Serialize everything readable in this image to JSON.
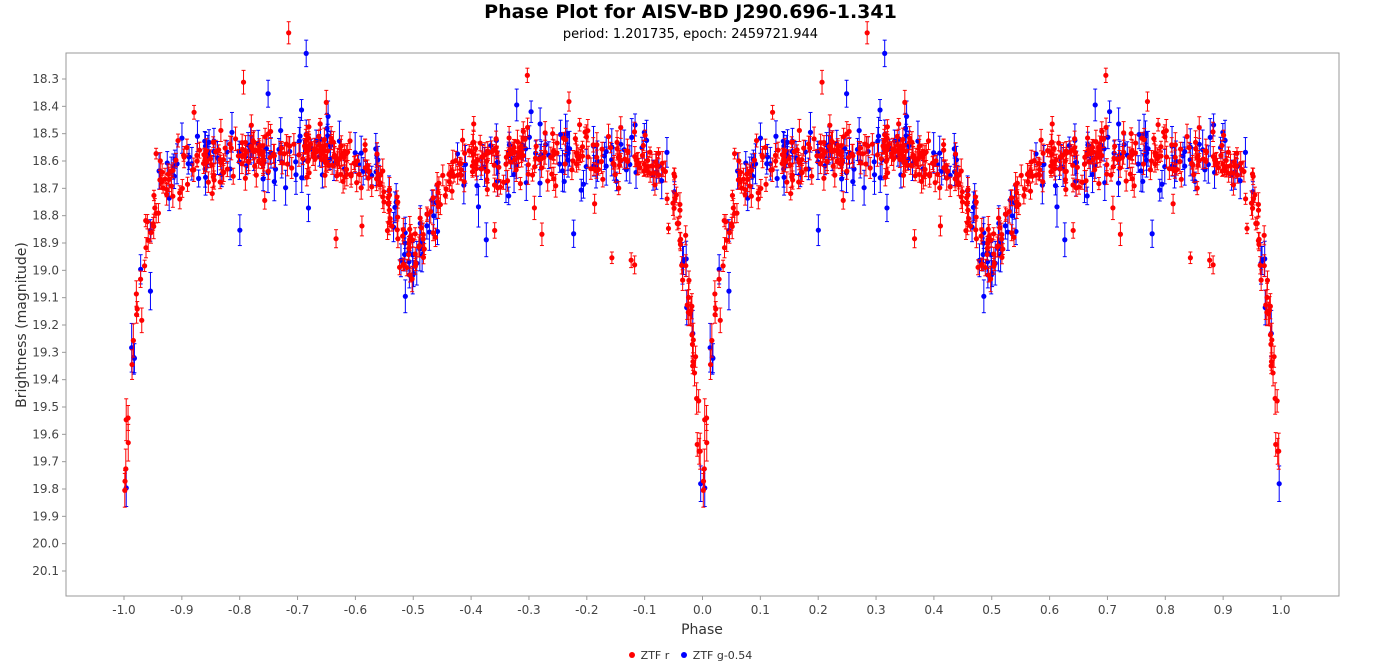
{
  "chart_data": {
    "type": "scatter",
    "title": "Phase Plot for AISV-BD J290.696-1.341",
    "subtitle": "period: 1.201735, epoch: 2459721.944",
    "xlabel": "Phase",
    "ylabel": "Brightness (magnitude)",
    "xlim": [
      -1.1,
      1.1
    ],
    "ylim": [
      18.2,
      20.2
    ],
    "y_inverted": true,
    "xticks": [
      "-1.0",
      "-0.9",
      "-0.8",
      "-0.7",
      "-0.6",
      "-0.5",
      "-0.4",
      "-0.3",
      "-0.2",
      "-0.1",
      "0.0",
      "0.1",
      "0.2",
      "0.3",
      "0.4",
      "0.5",
      "0.6",
      "0.7",
      "0.8",
      "0.9",
      "1.0"
    ],
    "yticks": [
      "18.3",
      "18.4",
      "18.5",
      "18.6",
      "18.7",
      "18.8",
      "18.9",
      "19.0",
      "19.1",
      "19.2",
      "19.3",
      "19.4",
      "19.5",
      "19.6",
      "19.7",
      "19.8",
      "19.9",
      "20.0",
      "20.1"
    ],
    "grid": false,
    "legend_position": "bottom-center",
    "light_curve_model": {
      "phase": [
        0.0,
        0.01,
        0.02,
        0.03,
        0.04,
        0.05,
        0.06,
        0.08,
        0.1,
        0.15,
        0.2,
        0.25,
        0.3,
        0.35,
        0.4,
        0.43,
        0.45,
        0.47,
        0.49,
        0.5,
        0.51,
        0.53,
        0.55,
        0.57,
        0.6,
        0.65,
        0.7,
        0.75,
        0.8,
        0.85,
        0.9,
        0.93,
        0.95,
        0.96,
        0.97,
        0.98,
        0.99,
        1.0
      ],
      "magnitude": [
        19.85,
        19.5,
        19.2,
        19.0,
        18.86,
        18.77,
        18.71,
        18.66,
        18.63,
        18.59,
        18.58,
        18.57,
        18.56,
        18.58,
        18.6,
        18.64,
        18.7,
        18.82,
        18.93,
        18.97,
        18.93,
        18.82,
        18.7,
        18.64,
        18.6,
        18.59,
        18.58,
        18.57,
        18.57,
        18.58,
        18.6,
        18.63,
        18.71,
        18.86,
        19.0,
        19.2,
        19.5,
        19.85
      ]
    },
    "series": [
      {
        "name": "ZTF r",
        "color": "#ff0000",
        "points_per_cycle": 520,
        "scatter": 0.045,
        "error": 0.03,
        "outlier_fraction": 0.05
      },
      {
        "name": "ZTF g-0.54",
        "color": "#0000ff",
        "points_per_cycle": 200,
        "scatter": 0.055,
        "error": 0.05,
        "outlier_fraction": 0.06
      }
    ]
  }
}
